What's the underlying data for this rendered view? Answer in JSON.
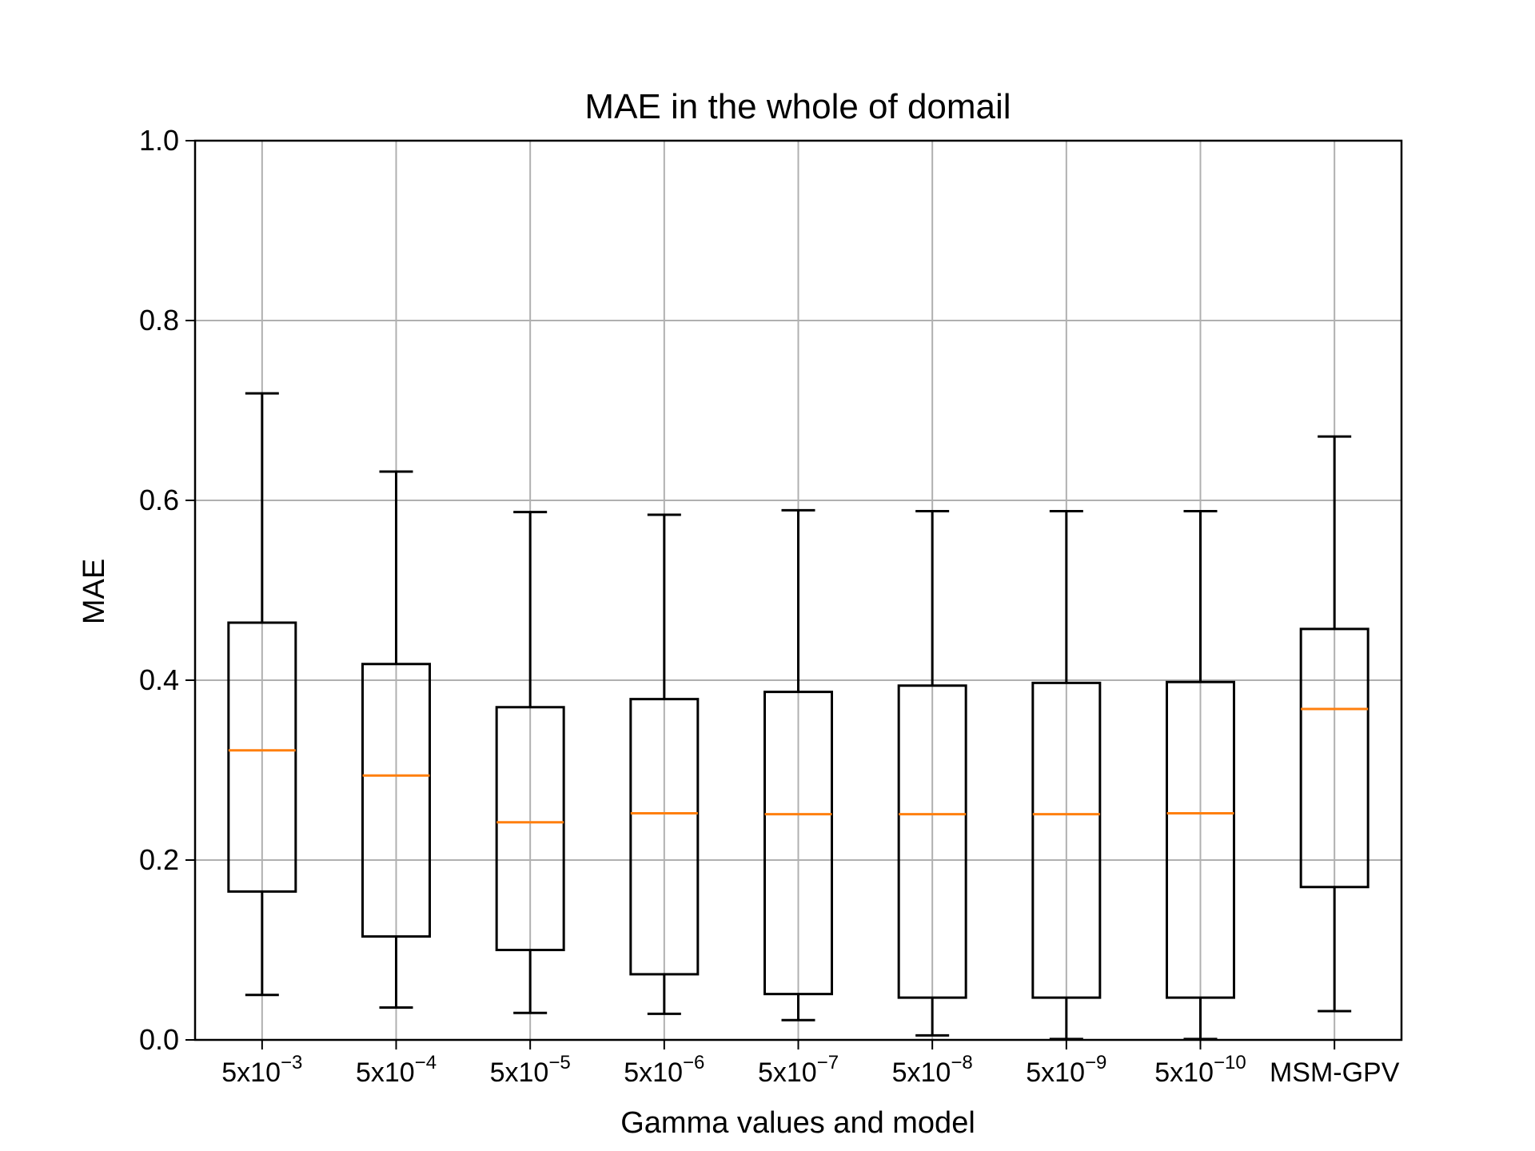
{
  "chart_data": {
    "type": "boxplot",
    "title": "MAE in the whole of domail",
    "xlabel": "Gamma values and model",
    "ylabel": "MAE",
    "ylim": [
      0.0,
      1.0
    ],
    "yticks": [
      "0.0",
      "0.2",
      "0.4",
      "0.6",
      "0.8",
      "1.0"
    ],
    "grid": true,
    "categories": [
      {
        "base": "5x10",
        "exp": "−3",
        "label": "5x10^-3"
      },
      {
        "base": "5x10",
        "exp": "−4",
        "label": "5x10^-4"
      },
      {
        "base": "5x10",
        "exp": "−5",
        "label": "5x10^-5"
      },
      {
        "base": "5x10",
        "exp": "−6",
        "label": "5x10^-6"
      },
      {
        "base": "5x10",
        "exp": "−7",
        "label": "5x10^-7"
      },
      {
        "base": "5x10",
        "exp": "−8",
        "label": "5x10^-8"
      },
      {
        "base": "5x10",
        "exp": "−9",
        "label": "5x10^-9"
      },
      {
        "base": "5x10",
        "exp": "−10",
        "label": "5x10^-10"
      },
      {
        "base": "MSM-GPV",
        "exp": "",
        "label": "MSM-GPV"
      }
    ],
    "boxes": [
      {
        "whisker_low": 0.05,
        "q1": 0.165,
        "median": 0.322,
        "q3": 0.464,
        "whisker_high": 0.719
      },
      {
        "whisker_low": 0.036,
        "q1": 0.115,
        "median": 0.294,
        "q3": 0.418,
        "whisker_high": 0.632
      },
      {
        "whisker_low": 0.03,
        "q1": 0.1,
        "median": 0.242,
        "q3": 0.37,
        "whisker_high": 0.587
      },
      {
        "whisker_low": 0.029,
        "q1": 0.073,
        "median": 0.252,
        "q3": 0.379,
        "whisker_high": 0.584
      },
      {
        "whisker_low": 0.022,
        "q1": 0.051,
        "median": 0.251,
        "q3": 0.387,
        "whisker_high": 0.589
      },
      {
        "whisker_low": 0.005,
        "q1": 0.047,
        "median": 0.251,
        "q3": 0.394,
        "whisker_high": 0.588
      },
      {
        "whisker_low": 0.001,
        "q1": 0.047,
        "median": 0.251,
        "q3": 0.397,
        "whisker_high": 0.588
      },
      {
        "whisker_low": 0.001,
        "q1": 0.047,
        "median": 0.252,
        "q3": 0.398,
        "whisker_high": 0.588
      },
      {
        "whisker_low": 0.032,
        "q1": 0.17,
        "median": 0.368,
        "q3": 0.457,
        "whisker_high": 0.671
      }
    ],
    "colors": {
      "box": "#000000",
      "median": "#ff7f0e",
      "grid": "#b0b0b0",
      "axes": "#000000",
      "background": "#ffffff"
    }
  }
}
